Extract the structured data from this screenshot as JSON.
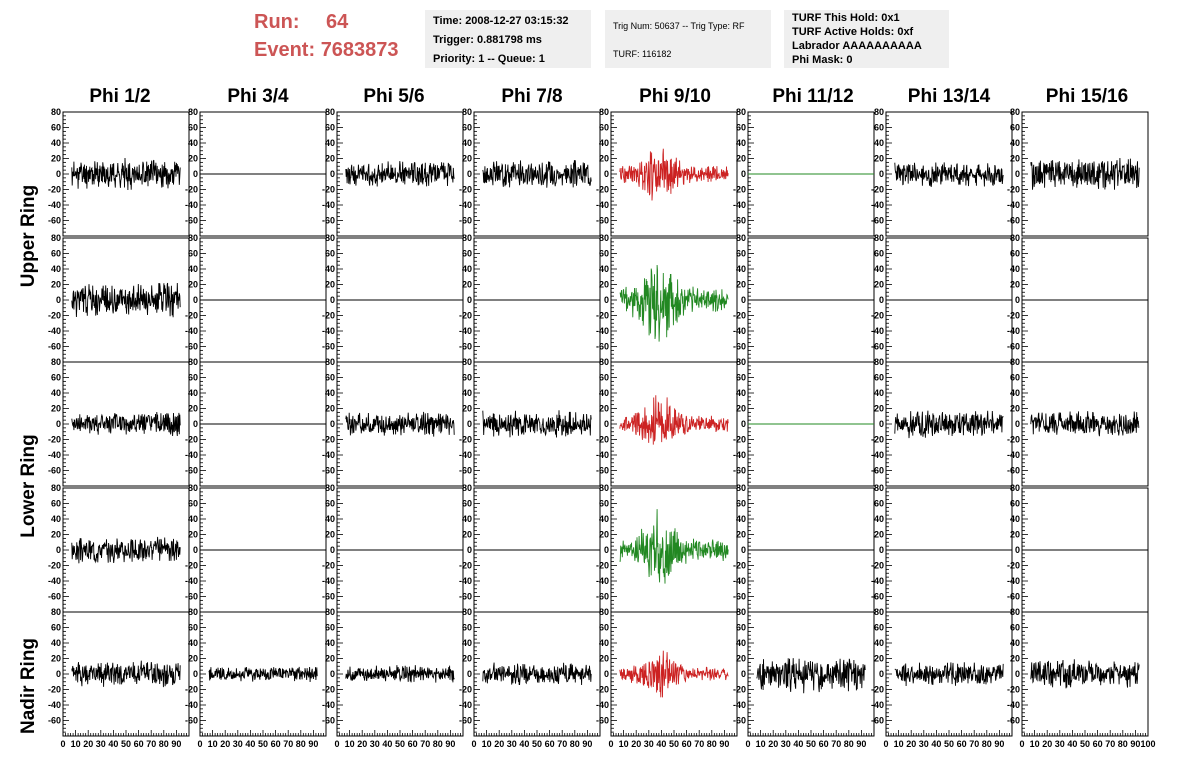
{
  "header": {
    "run_label": "Run:",
    "run_value": "64",
    "event_label": "Event:",
    "event_value": "7683873",
    "time": "Time: 2008-12-27 03:15:32",
    "trigger": "Trigger: 0.881798 ms",
    "priority": "Priority: 1 -- Queue: 1",
    "trig_num": "Trig Num: 50637 -- Trig Type: RF",
    "turf": "TURF: 116182",
    "turf_this_hold": "TURF This Hold: 0x1",
    "turf_active_holds": "TURF Active Holds: 0xf",
    "labrador": "Labrador AAAAAAAAAA",
    "phi_mask": "Phi Mask: 0"
  },
  "columns": [
    "Phi 1/2",
    "Phi 3/4",
    "Phi 5/6",
    "Phi 7/8",
    "Phi 9/10",
    "Phi 11/12",
    "Phi 13/14",
    "Phi 15/16"
  ],
  "rings": [
    "Upper Ring",
    "Lower Ring",
    "Nadir Ring"
  ],
  "colors": {
    "normal": "#000000",
    "triggered_top": "#cc2222",
    "triggered_bottom": "#228822",
    "flat_green": "#228822",
    "header_red": "#cc5555",
    "info_bg": "#efefef"
  },
  "chart_data": {
    "type": "line",
    "title": "",
    "xlabel": "",
    "ylabel": "",
    "xlim": [
      0,
      100
    ],
    "ylim": [
      -80,
      80
    ],
    "y_ticks": [
      -60,
      -40,
      -20,
      0,
      20,
      40,
      60,
      80
    ],
    "x_ticks": [
      0,
      10,
      20,
      30,
      40,
      50,
      60,
      70,
      80,
      90,
      100
    ],
    "rows": [
      {
        "ring": "Upper Ring",
        "sub": "top",
        "cells": [
          {
            "kind": "noise",
            "color": "normal",
            "amp": 14,
            "seed": 11
          },
          {
            "kind": "flat",
            "color": "normal"
          },
          {
            "kind": "noise",
            "color": "normal",
            "amp": 12,
            "seed": 13
          },
          {
            "kind": "noise",
            "color": "normal",
            "amp": 13,
            "seed": 17
          },
          {
            "kind": "burst",
            "color": "triggered_top",
            "amp": 14,
            "seed": 19
          },
          {
            "kind": "flat",
            "color": "flat_green"
          },
          {
            "kind": "noise",
            "color": "normal",
            "amp": 12,
            "seed": 23
          },
          {
            "kind": "noise",
            "color": "normal",
            "amp": 15,
            "seed": 29
          }
        ]
      },
      {
        "ring": "Upper Ring",
        "sub": "bottom",
        "cells": [
          {
            "kind": "noise",
            "color": "normal",
            "amp": 16,
            "seed": 31
          },
          {
            "kind": "flat",
            "color": "normal"
          },
          {
            "kind": "flat",
            "color": "normal"
          },
          {
            "kind": "flat",
            "color": "normal"
          },
          {
            "kind": "burst",
            "color": "triggered_bottom",
            "amp": 22,
            "seed": 37
          },
          {
            "kind": "flat",
            "color": "normal"
          },
          {
            "kind": "flat",
            "color": "normal"
          },
          {
            "kind": "flat",
            "color": "normal"
          }
        ]
      },
      {
        "ring": "Lower Ring",
        "sub": "top",
        "cells": [
          {
            "kind": "noise",
            "color": "normal",
            "amp": 11,
            "seed": 41
          },
          {
            "kind": "flat",
            "color": "normal"
          },
          {
            "kind": "noise",
            "color": "normal",
            "amp": 11,
            "seed": 43
          },
          {
            "kind": "noise",
            "color": "normal",
            "amp": 12,
            "seed": 47
          },
          {
            "kind": "burst",
            "color": "triggered_top",
            "amp": 14,
            "seed": 53
          },
          {
            "kind": "flat",
            "color": "flat_green"
          },
          {
            "kind": "noise",
            "color": "normal",
            "amp": 13,
            "seed": 59
          },
          {
            "kind": "noise",
            "color": "normal",
            "amp": 12,
            "seed": 61
          }
        ]
      },
      {
        "ring": "Lower Ring",
        "sub": "bottom",
        "cells": [
          {
            "kind": "noise",
            "color": "normal",
            "amp": 12,
            "seed": 67
          },
          {
            "kind": "flat",
            "color": "normal"
          },
          {
            "kind": "flat",
            "color": "normal"
          },
          {
            "kind": "flat",
            "color": "normal"
          },
          {
            "kind": "burst",
            "color": "triggered_bottom",
            "amp": 18,
            "seed": 71
          },
          {
            "kind": "flat",
            "color": "normal"
          },
          {
            "kind": "flat",
            "color": "normal"
          },
          {
            "kind": "flat",
            "color": "normal"
          }
        ]
      },
      {
        "ring": "Nadir Ring",
        "sub": "single",
        "cells": [
          {
            "kind": "noise",
            "color": "normal",
            "amp": 12,
            "seed": 73
          },
          {
            "kind": "noise",
            "color": "normal",
            "amp": 7,
            "seed": 79
          },
          {
            "kind": "noise",
            "color": "normal",
            "amp": 8,
            "seed": 83
          },
          {
            "kind": "noise",
            "color": "normal",
            "amp": 10,
            "seed": 89
          },
          {
            "kind": "burst",
            "color": "triggered_top",
            "amp": 12,
            "seed": 97
          },
          {
            "kind": "noise",
            "color": "normal",
            "amp": 17,
            "seed": 101
          },
          {
            "kind": "noise",
            "color": "normal",
            "amp": 11,
            "seed": 103
          },
          {
            "kind": "noise",
            "color": "normal",
            "amp": 13,
            "seed": 107
          }
        ]
      }
    ]
  }
}
